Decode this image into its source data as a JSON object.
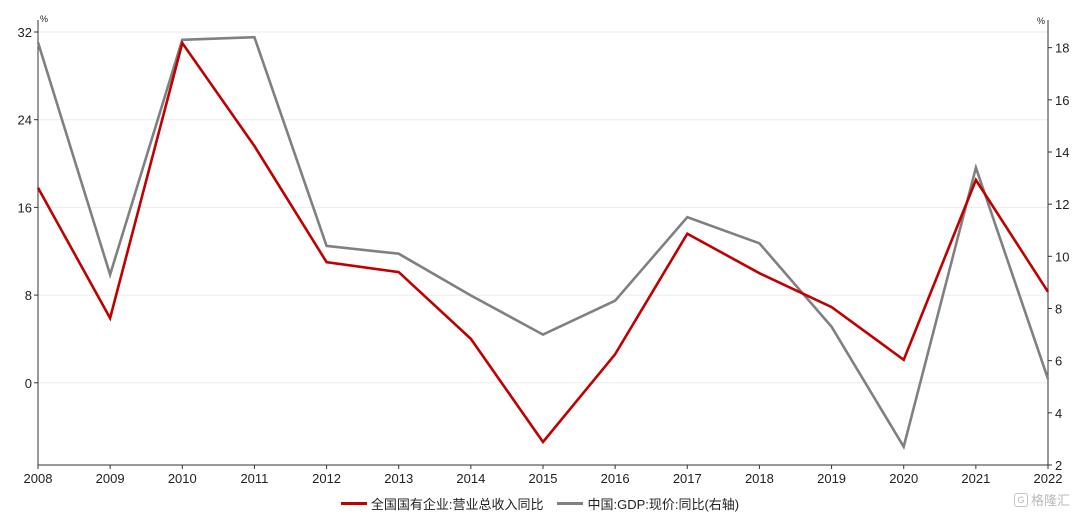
{
  "chart_data": {
    "type": "line",
    "x": [
      "2008",
      "2009",
      "2010",
      "2011",
      "2012",
      "2013",
      "2014",
      "2015",
      "2016",
      "2017",
      "2018",
      "2019",
      "2020",
      "2021",
      "2022"
    ],
    "series": [
      {
        "name": "全国国有企业:营业总收入同比",
        "axis": "left",
        "color": "#c00000",
        "values": [
          17.8,
          5.9,
          31,
          21.6,
          11,
          10.1,
          4,
          -5.4,
          2.6,
          13.6,
          10,
          6.9,
          2.1,
          18.5,
          8.3
        ]
      },
      {
        "name": "中国:GDP:现价:同比(右轴)",
        "axis": "right",
        "color": "#808080",
        "values": [
          18.2,
          9.3,
          18.3,
          18.4,
          10.4,
          10.1,
          8.5,
          7.0,
          8.3,
          11.5,
          10.5,
          7.3,
          2.7,
          13.4,
          5.3
        ]
      }
    ],
    "left_axis": {
      "unit": "%",
      "ticks": [
        0,
        8,
        16,
        24,
        32
      ],
      "range": [
        -7.5,
        32
      ]
    },
    "right_axis": {
      "unit": "%",
      "ticks": [
        2,
        4,
        6,
        8,
        10,
        12,
        14,
        16,
        18
      ],
      "range": [
        2,
        18.6
      ]
    },
    "grid": "horizontal"
  },
  "legend": {
    "items": [
      {
        "label": "全国国有企业:营业总收入同比",
        "color": "#c00000"
      },
      {
        "label": "中国:GDP:现价:同比(右轴)",
        "color": "#808080"
      }
    ]
  },
  "watermark": {
    "text": "格隆汇",
    "icon": "g-logo-icon"
  }
}
